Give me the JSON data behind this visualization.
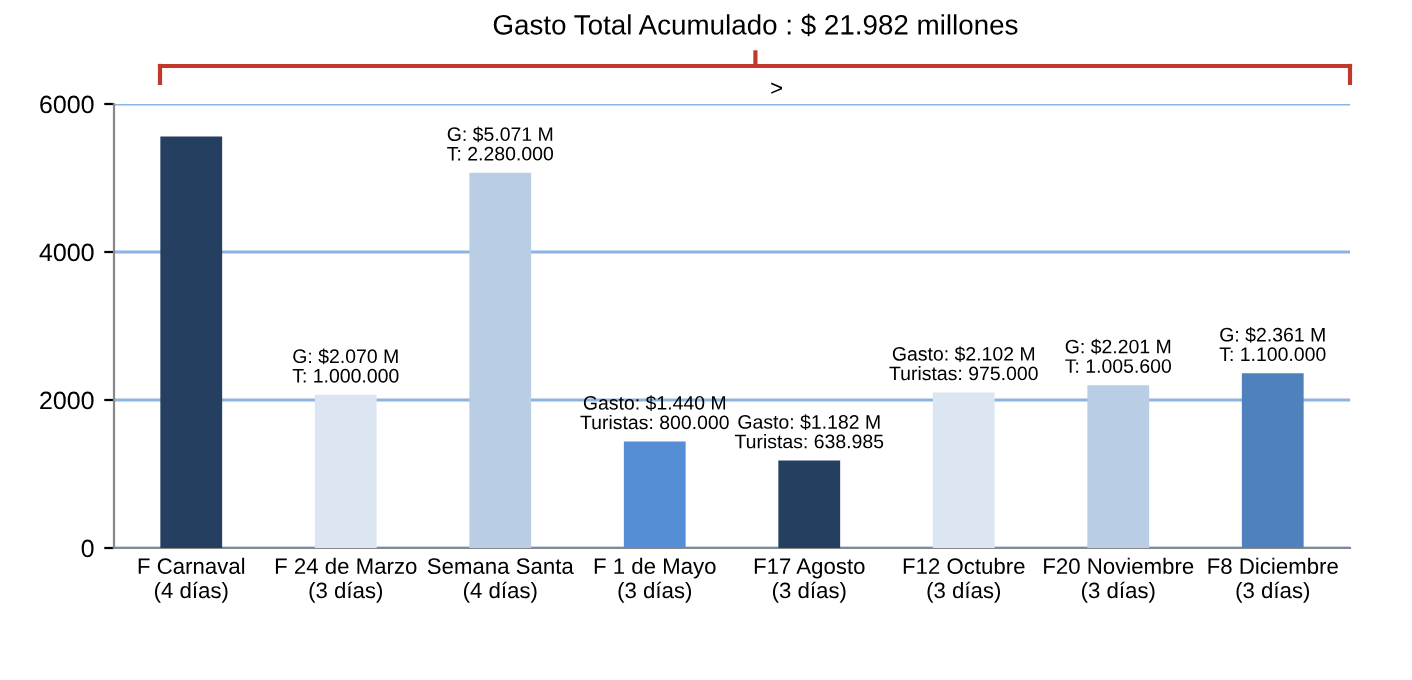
{
  "chart_data": {
    "type": "bar",
    "title": "Gasto Total Acumulado : $ 21.982 millones",
    "categories": [
      "F Carnaval\n(4 días)",
      "F 24 de Marzo\n(3 días)",
      "Semana Santa\n(4 días)",
      "F 1 de Mayo\n(3 días)",
      "F17 Agosto\n(3 días)",
      "F12 Octubre\n(3 días)",
      "F20 Noviembre\n(3 días)",
      "F8 Diciembre\n(3 días)"
    ],
    "values": [
      5560,
      2070,
      5071,
      1440,
      1182,
      2102,
      2201,
      2361
    ],
    "colors": [
      "#243f60",
      "#dce6f2",
      "#b9cde5",
      "#558ed5",
      "#243f60",
      "#dce6f2",
      "#b9cde5",
      "#4f81bd"
    ],
    "value_labels": [
      null,
      "G: $2.070 M\nT: 1.000.000",
      "G: $5.071 M\nT: 2.280.000",
      "Gasto: $1.440 M\nTuristas: 800.000",
      "Gasto: $1.182 M\nTuristas: 638.985",
      "Gasto: $2.102 M\nTuristas: 975.000",
      "G: $2.201 M\nT: 1.005.600",
      "G: $2.361 M\nT: 1.100.000"
    ],
    "annotations": [
      ">"
    ],
    "ylim": [
      0,
      6000
    ],
    "yticks": [
      0,
      2000,
      4000,
      6000
    ],
    "grid": "y",
    "legend": false
  }
}
